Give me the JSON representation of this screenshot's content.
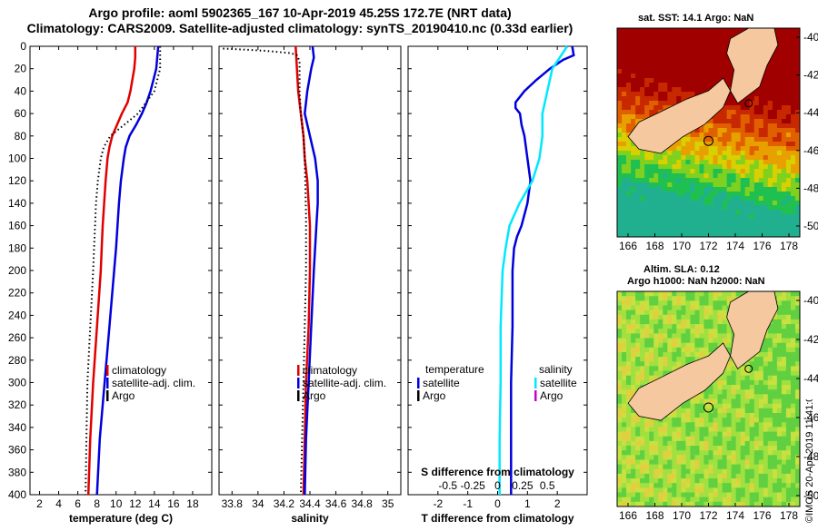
{
  "header": {
    "line1": "Argo profile: aoml 5902365_167 10-Apr-2019 45.25S 172.7E (NRT data)",
    "line2": "Climatology: CARS2009. Satellite-adjusted climatology: synTS_20190410.nc (0.33d earlier)"
  },
  "map_sst": {
    "title": "sat. SST: 14.1 Argo: NaN"
  },
  "map_sla": {
    "title1": "Altim. SLA: 0.12",
    "title2": "Argo h1000: NaN h2000: NaN"
  },
  "stamp": "©IMOS 20-Apr-2019 11:41:01",
  "colors": {
    "climatology": "#e00000",
    "satellite": "#0000dd",
    "argo": "#000000",
    "s_satellite": "#00e8ff",
    "s_argo": "#cc00cc",
    "land": "#f5c8a0"
  },
  "chart_data": [
    {
      "type": "line",
      "name": "temperature",
      "xlabel": "temperature (deg C)",
      "ylabel": "depth",
      "xlim": [
        1,
        20
      ],
      "ylim": [
        400,
        0
      ],
      "xticks": [
        "2",
        "4",
        "6",
        "8",
        "10",
        "12",
        "14",
        "16",
        "18"
      ],
      "yticks": [
        "0",
        "20",
        "40",
        "60",
        "80",
        "100",
        "120",
        "140",
        "160",
        "180",
        "200",
        "220",
        "240",
        "260",
        "280",
        "300",
        "320",
        "340",
        "360",
        "380",
        "400"
      ],
      "legend": [
        "climatology",
        "satellite-adj. clim.",
        "Argo"
      ],
      "series": [
        {
          "name": "climatology",
          "depth": [
            0,
            10,
            20,
            30,
            40,
            50,
            60,
            70,
            80,
            90,
            100,
            120,
            140,
            160,
            180,
            200,
            250,
            300,
            350,
            400
          ],
          "values": [
            12.0,
            12.0,
            11.9,
            11.7,
            11.5,
            11.2,
            10.6,
            10.1,
            9.6,
            9.3,
            9.1,
            8.9,
            8.75,
            8.6,
            8.5,
            8.4,
            8.0,
            7.6,
            7.3,
            7.1
          ]
        },
        {
          "name": "satellite-adj. clim.",
          "depth": [
            0,
            10,
            20,
            30,
            40,
            50,
            60,
            70,
            80,
            90,
            100,
            120,
            140,
            160,
            180,
            200,
            250,
            300,
            350,
            400
          ],
          "values": [
            14.4,
            14.3,
            14.2,
            13.9,
            13.6,
            13.2,
            12.7,
            12.1,
            11.4,
            11.0,
            10.8,
            10.5,
            10.3,
            10.15,
            10.0,
            9.8,
            9.3,
            8.8,
            8.3,
            8.0
          ]
        },
        {
          "name": "Argo",
          "depth": [
            0,
            20,
            40,
            60,
            80,
            90,
            100,
            120,
            140,
            160,
            180,
            200,
            250,
            300,
            350,
            400
          ],
          "values": [
            14.6,
            14.6,
            14.0,
            12.3,
            9.4,
            8.7,
            8.4,
            8.1,
            7.9,
            7.8,
            7.7,
            7.6,
            7.3,
            7.0,
            6.9,
            6.8
          ]
        }
      ]
    },
    {
      "type": "line",
      "name": "salinity",
      "xlabel": "salinity",
      "xlim": [
        33.7,
        35.1
      ],
      "ylim": [
        400,
        0
      ],
      "xticks": [
        "33.8",
        "34",
        "34.2",
        "34.4",
        "34.6",
        "34.8",
        "35"
      ],
      "legend": [
        "climatology",
        "satellite-adj. clim.",
        "Argo"
      ],
      "series": [
        {
          "name": "climatology",
          "depth": [
            0,
            20,
            40,
            60,
            80,
            100,
            120,
            140,
            160,
            180,
            200,
            250,
            300,
            350,
            400
          ],
          "values": [
            34.29,
            34.3,
            34.31,
            34.33,
            34.35,
            34.36,
            34.38,
            34.39,
            34.4,
            34.4,
            34.4,
            34.39,
            34.37,
            34.36,
            34.35
          ]
        },
        {
          "name": "satellite-adj. clim.",
          "depth": [
            0,
            10,
            20,
            40,
            60,
            80,
            100,
            120,
            140,
            160,
            180,
            200,
            250,
            300,
            350,
            400
          ],
          "values": [
            34.42,
            34.43,
            34.41,
            34.38,
            34.36,
            34.4,
            34.44,
            34.46,
            34.46,
            34.45,
            34.44,
            34.43,
            34.41,
            34.39,
            34.37,
            34.36
          ]
        },
        {
          "name": "Argo",
          "depth": [
            2,
            3,
            4,
            5,
            6,
            8,
            10,
            15,
            20,
            40,
            60,
            80,
            100,
            150,
            200,
            250,
            300,
            350,
            400
          ],
          "values": [
            33.73,
            33.9,
            34.05,
            34.15,
            34.25,
            34.3,
            34.31,
            34.32,
            34.32,
            34.32,
            34.33,
            34.35,
            34.36,
            34.37,
            34.37,
            34.36,
            34.35,
            34.34,
            34.33
          ]
        }
      ]
    },
    {
      "type": "line",
      "name": "difference",
      "xlabel": "T difference from climatology",
      "xlabel_top": "S difference from climatology",
      "xlim": [
        -3,
        3
      ],
      "ylim": [
        400,
        0
      ],
      "xticks": [
        "-2",
        "-1",
        "0",
        "1",
        "2"
      ],
      "s_xticks": [
        "-0.5",
        "-0.25",
        "0",
        "0.25",
        "0.5"
      ],
      "legend_temperature": {
        "title": "temperature",
        "items": [
          "satellite",
          "Argo"
        ]
      },
      "legend_salinity": {
        "title": "salinity",
        "items": [
          "satellite",
          "Argo"
        ]
      },
      "series": [
        {
          "name": "temperature satellite",
          "depth": [
            0,
            8,
            12,
            20,
            30,
            40,
            50,
            55,
            60,
            70,
            80,
            100,
            120,
            140,
            160,
            170,
            180,
            200,
            250,
            300,
            350,
            400
          ],
          "values": [
            2.5,
            2.55,
            2.2,
            1.75,
            1.3,
            0.9,
            0.6,
            0.6,
            0.75,
            0.8,
            0.9,
            1.0,
            1.1,
            1.0,
            0.8,
            0.65,
            0.55,
            0.5,
            0.5,
            0.45,
            0.45,
            0.45
          ]
        },
        {
          "name": "salinity satellite",
          "depth": [
            0,
            20,
            40,
            60,
            80,
            100,
            120,
            140,
            160,
            180,
            200,
            250,
            300,
            350,
            400
          ],
          "values": [
            0.7,
            0.55,
            0.5,
            0.45,
            0.45,
            0.42,
            0.35,
            0.22,
            0.12,
            0.08,
            0.05,
            0.03,
            0.03,
            0.02,
            0.02
          ]
        }
      ]
    },
    {
      "type": "heatmap",
      "name": "sst-map",
      "xticks": [
        "166",
        "168",
        "170",
        "172",
        "174",
        "176",
        "178"
      ],
      "yticks": [
        "-40",
        "-42",
        "-44",
        "-46",
        "-48",
        "-50"
      ]
    },
    {
      "type": "heatmap",
      "name": "sla-map",
      "xticks": [
        "166",
        "168",
        "170",
        "172",
        "174",
        "176",
        "178"
      ],
      "yticks": [
        "-40",
        "-42",
        "-44",
        "-46",
        "-48",
        "-50"
      ]
    }
  ]
}
